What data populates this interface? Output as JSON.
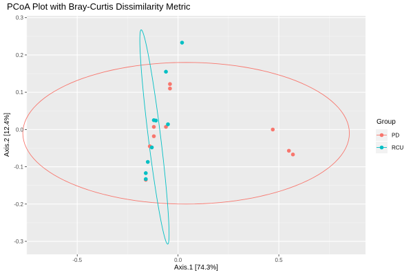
{
  "chart_data": {
    "type": "scatter",
    "title": "PCoA Plot with Bray-Curtis Dissimilarity Metric",
    "xlabel": "Axis.1   [74.3%]",
    "ylabel": "Axis.2   [12.4%]",
    "xlim": [
      -0.75,
      0.93
    ],
    "ylim": [
      -0.335,
      0.305
    ],
    "x_ticks": [
      -0.5,
      0.0,
      0.5
    ],
    "y_ticks": [
      -0.3,
      -0.2,
      -0.1,
      0.0,
      0.1,
      0.2,
      0.3
    ],
    "x_tick_labels": [
      "-0.5",
      "0.0",
      "0.5"
    ],
    "y_tick_labels": [
      "-0.3",
      "-0.2",
      "-0.1",
      "0.0",
      "0.1",
      "0.2",
      "0.3"
    ],
    "grid": true,
    "legend": {
      "title": "Group",
      "position": "right",
      "entries": [
        "PD",
        "RCU"
      ]
    },
    "series": [
      {
        "name": "PD",
        "color": "#F8766D",
        "points": [
          {
            "x": 0.47,
            "y": 0.0
          },
          {
            "x": 0.55,
            "y": -0.057
          },
          {
            "x": 0.57,
            "y": -0.067
          },
          {
            "x": -0.04,
            "y": 0.122
          },
          {
            "x": -0.04,
            "y": 0.11
          },
          {
            "x": -0.12,
            "y": 0.007
          },
          {
            "x": -0.06,
            "y": 0.007
          },
          {
            "x": -0.12,
            "y": -0.018
          },
          {
            "x": -0.14,
            "y": -0.045
          },
          {
            "x": -0.16,
            "y": -0.135
          }
        ],
        "ellipse": {
          "center": [
            0.04,
            -0.01
          ],
          "rx": 0.81,
          "ry": 0.19,
          "angle_deg": 0
        }
      },
      {
        "name": "RCU",
        "color": "#00BFC4",
        "points": [
          {
            "x": 0.02,
            "y": 0.233
          },
          {
            "x": -0.06,
            "y": 0.155
          },
          {
            "x": -0.12,
            "y": 0.025
          },
          {
            "x": -0.11,
            "y": 0.024
          },
          {
            "x": -0.05,
            "y": 0.014
          },
          {
            "x": -0.13,
            "y": -0.048
          },
          {
            "x": -0.15,
            "y": -0.087
          },
          {
            "x": -0.16,
            "y": -0.117
          },
          {
            "x": -0.16,
            "y": -0.133
          }
        ],
        "ellipse": {
          "center": [
            -0.117,
            -0.02
          ],
          "rx": 0.03,
          "ry": 0.295,
          "angle_deg": 13
        }
      }
    ]
  }
}
